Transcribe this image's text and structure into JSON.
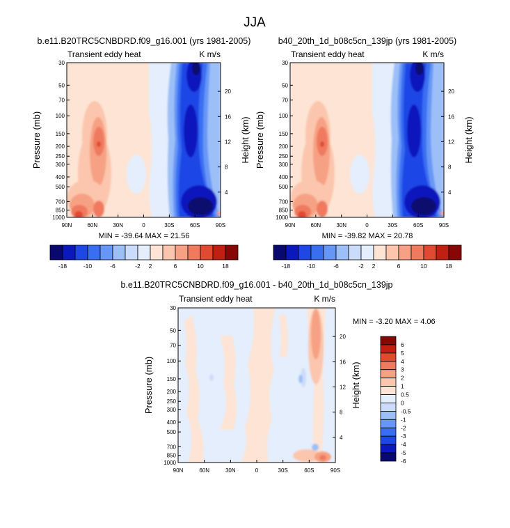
{
  "figure": {
    "title": "JJA"
  },
  "chart_data": [
    {
      "type": "heatmap",
      "title": "b.e11.B20TRC5CNBDRD.f09_g16.001 (yrs 1981-2005)",
      "left_title": "Transient eddy heat",
      "right_title": "K m/s",
      "xlabel": "",
      "ylabel": "Pressure (mb)",
      "ylabel_right": "Height (km)",
      "x_ticks": [
        "90N",
        "60N",
        "30N",
        "0",
        "30S",
        "60S",
        "90S"
      ],
      "y_ticks": [
        "30",
        "50",
        "70",
        "100",
        "150",
        "200",
        "250",
        "300",
        "400",
        "500",
        "700",
        "850",
        "1000"
      ],
      "height_ticks": [
        "4",
        "8",
        "12",
        "16",
        "20"
      ],
      "stats_text": "MIN = -39.64   MAX =  21.56",
      "min": -39.64,
      "max": 21.56,
      "colorbar_labels": [
        "-18",
        "-10",
        "-6",
        "-2",
        "2",
        "6",
        "10",
        "18"
      ],
      "features": [
        {
          "sign": "positive",
          "location": "60N, 1000 mb",
          "value_level": 10
        },
        {
          "sign": "positive",
          "location": "60N, 200 mb",
          "value_level": 10
        },
        {
          "sign": "negative",
          "location": "60S, 850 mb",
          "value_level": -18
        },
        {
          "sign": "negative",
          "location": "60S, 30 mb",
          "value_level": -10
        }
      ]
    },
    {
      "type": "heatmap",
      "title": "b40_20th_1d_b08c5cn_139jp (yrs 1981-2005)",
      "left_title": "Transient eddy heat",
      "right_title": "K m/s",
      "xlabel": "",
      "ylabel": "Pressure (mb)",
      "ylabel_right": "Height (km)",
      "x_ticks": [
        "90N",
        "60N",
        "30N",
        "0",
        "30S",
        "60S",
        "90S"
      ],
      "y_ticks": [
        "30",
        "50",
        "70",
        "100",
        "150",
        "200",
        "250",
        "300",
        "400",
        "500",
        "700",
        "850",
        "1000"
      ],
      "height_ticks": [
        "4",
        "8",
        "12",
        "16",
        "20"
      ],
      "stats_text": "MIN = -39.82   MAX =  20.78",
      "min": -39.82,
      "max": 20.78,
      "colorbar_labels": [
        "-18",
        "-10",
        "-6",
        "-2",
        "2",
        "6",
        "10",
        "18"
      ],
      "features": [
        {
          "sign": "positive",
          "location": "60N, 1000 mb",
          "value_level": 10
        },
        {
          "sign": "positive",
          "location": "60N, 200 mb",
          "value_level": 10
        },
        {
          "sign": "negative",
          "location": "60S, 850 mb",
          "value_level": -18
        },
        {
          "sign": "negative",
          "location": "60S, 30 mb",
          "value_level": -10
        }
      ]
    },
    {
      "type": "heatmap",
      "title": "b.e11.B20TRC5CNBDRD.f09_g16.001 - b40_20th_1d_b08c5cn_139jp",
      "left_title": "Transient eddy heat",
      "right_title": "K m/s",
      "xlabel": "",
      "ylabel": "Pressure (mb)",
      "ylabel_right": "Height (km)",
      "x_ticks": [
        "90N",
        "60N",
        "30N",
        "0",
        "30S",
        "60S",
        "90S"
      ],
      "y_ticks": [
        "30",
        "50",
        "70",
        "100",
        "150",
        "200",
        "250",
        "300",
        "400",
        "500",
        "700",
        "850",
        "1000"
      ],
      "height_ticks": [
        "4",
        "8",
        "12",
        "16",
        "20"
      ],
      "stats_text": "MIN =  -3.20   MAX =   4.06",
      "min": -3.2,
      "max": 4.06,
      "colorbar_labels": [
        "6",
        "5",
        "4",
        "3",
        "2",
        "1",
        "0.5",
        "0",
        "-0.5",
        "-1",
        "-2",
        "-3",
        "-4",
        "-5",
        "-6"
      ],
      "features": [
        {
          "sign": "positive",
          "location": "70S, 30-150 mb",
          "value_level": 2
        },
        {
          "sign": "negative",
          "location": "55S, 150 mb",
          "value_level": -1
        },
        {
          "sign": "positive",
          "location": "70S, 1000 mb",
          "value_level": 2
        }
      ]
    }
  ],
  "palettes": {
    "main": [
      "#08086e",
      "#0a18bd",
      "#1f46e6",
      "#3a6ef2",
      "#6797f6",
      "#9cbff8",
      "#cbdcfa",
      "#e4eefc",
      "#fde4d4",
      "#fbc6ad",
      "#f6a184",
      "#ef7a5e",
      "#e14a30",
      "#c11f12",
      "#870707"
    ],
    "diff": [
      "#870707",
      "#c11f12",
      "#e14a30",
      "#ef7a5e",
      "#f6a184",
      "#fbc6ad",
      "#fde4d4",
      "#e4eefc",
      "#cbdcfa",
      "#9cbff8",
      "#6797f6",
      "#3a6ef2",
      "#1f46e6",
      "#0a18bd",
      "#08086e"
    ]
  }
}
